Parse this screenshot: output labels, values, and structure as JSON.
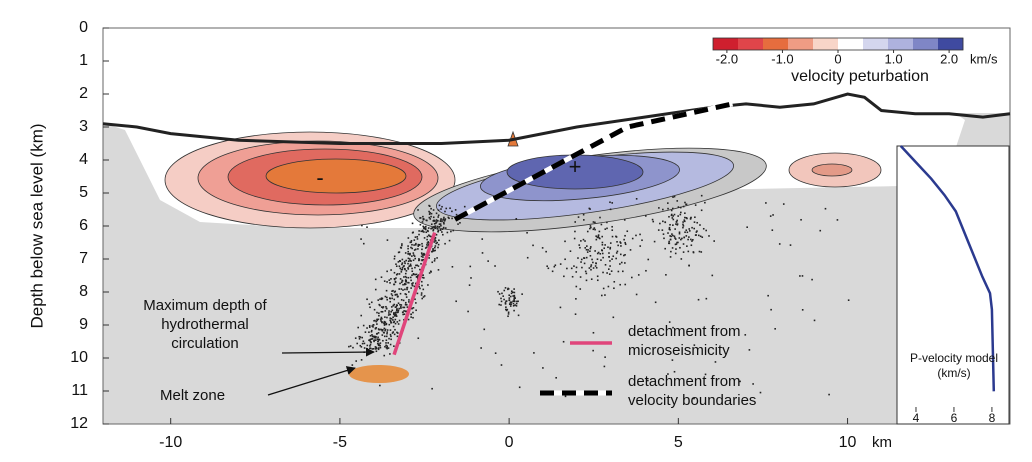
{
  "chart_data": {
    "type": "cross-section",
    "y_label": "Depth below sea level (km)",
    "x_unit": "km",
    "xlim": [
      -12,
      14.8
    ],
    "ylim": [
      0,
      12
    ],
    "xticks": [
      -10,
      -5,
      0,
      5,
      10
    ],
    "yticks": [
      0,
      1,
      2,
      3,
      4,
      5,
      6,
      7,
      8,
      9,
      10,
      11,
      12
    ],
    "seafloor": {
      "color": "#222222",
      "x": [
        -12,
        -11,
        -10,
        -8,
        -5,
        -2,
        0,
        2,
        4,
        6,
        7,
        8,
        9,
        10,
        10.5,
        11,
        12,
        13,
        14,
        14.8
      ],
      "y": [
        2.9,
        3.0,
        3.2,
        3.4,
        3.5,
        3.5,
        3.4,
        3.0,
        2.7,
        2.4,
        2.3,
        2.4,
        2.3,
        2.0,
        2.1,
        2.5,
        2.6,
        2.6,
        2.7,
        2.6
      ]
    },
    "series": [
      {
        "name": "detachment from microseismicity",
        "color": "#e0457b",
        "dashed": false,
        "x": [
          -2.2,
          -3.4
        ],
        "y": [
          6.2,
          9.9
        ]
      },
      {
        "name": "detachment from velocity boundaries",
        "color": "#000000",
        "dashed": true,
        "x": [
          -1.6,
          3.5,
          6.6
        ],
        "y": [
          5.8,
          3.0,
          2.3
        ]
      }
    ],
    "colorbar": {
      "title": "velocity peturbation",
      "unit": "km/s",
      "lim": [
        -2.25,
        2.25
      ],
      "ticks": [
        {
          "value": -2,
          "label": "-2.0"
        },
        {
          "value": -1,
          "label": "-1.0"
        },
        0,
        {
          "value": 1,
          "label": "1.0"
        },
        {
          "value": 2,
          "label": "2.0"
        }
      ],
      "colors": [
        "#cf1f2e",
        "#e0454a",
        "#e66d3e",
        "#ef9c84",
        "#f8d5c8",
        "#ffffff",
        "#d4d6ee",
        "#aeb2de",
        "#7f86c6",
        "#3f4aa0"
      ]
    },
    "annotations": [
      "Maximum depth of hydrothermal circulation",
      "Melt zone",
      "-",
      "+"
    ],
    "inset": {
      "label": "P-velocity model (km/s)",
      "xlim": [
        3,
        8.9
      ],
      "ylim": [
        0,
        8.5
      ],
      "xticks": [
        4,
        6,
        8
      ],
      "color": "#2b3a8f",
      "velocity": [
        3.2,
        4.0,
        4.8,
        5.5,
        6.1,
        6.8,
        7.5,
        7.9,
        8.0,
        8.1
      ],
      "depth": [
        0,
        0.5,
        1,
        1.5,
        2,
        3,
        4,
        4.5,
        5,
        7.5
      ]
    }
  }
}
